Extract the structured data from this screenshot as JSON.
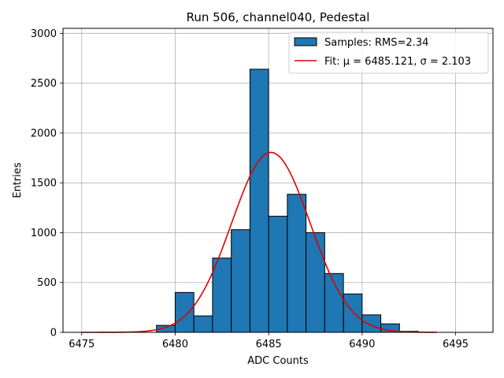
{
  "chart_data": {
    "type": "bar",
    "title": "Run 506, channel040, Pedestal",
    "xlabel": "ADC Counts",
    "ylabel": "Entries",
    "xlim": [
      6474.0,
      6497.0
    ],
    "ylim": [
      0,
      3050
    ],
    "xticks": [
      6475,
      6480,
      6485,
      6490,
      6495
    ],
    "xtick_labels": [
      "6475",
      "6480",
      "6485",
      "6490",
      "6495"
    ],
    "yticks": [
      0,
      500,
      1000,
      1500,
      2000,
      2500,
      3000
    ],
    "ytick_labels": [
      "0",
      "500",
      "1000",
      "1500",
      "2000",
      "2500",
      "3000"
    ],
    "grid": true,
    "legend_position": "top-right",
    "bin_width": 1,
    "bins": [
      {
        "left": 6479,
        "value": 70
      },
      {
        "left": 6480,
        "value": 400
      },
      {
        "left": 6481,
        "value": 165
      },
      {
        "left": 6482,
        "value": 745
      },
      {
        "left": 6483,
        "value": 1030
      },
      {
        "left": 6484,
        "value": 2640
      },
      {
        "left": 6485,
        "value": 1165
      },
      {
        "left": 6486,
        "value": 1385
      },
      {
        "left": 6487,
        "value": 1000
      },
      {
        "left": 6488,
        "value": 590
      },
      {
        "left": 6489,
        "value": 385
      },
      {
        "left": 6490,
        "value": 175
      },
      {
        "left": 6491,
        "value": 85
      },
      {
        "left": 6492,
        "value": 10
      }
    ],
    "series": [
      {
        "name": "Samples: RMS=2.34",
        "kind": "histogram",
        "color": "#1f77b4",
        "edge_color": "#000000"
      },
      {
        "name": "Fit: μ = 6485.121, σ = 2.103",
        "kind": "fit",
        "color": "#e00000",
        "mu": 6485.121,
        "sigma": 2.103,
        "amplitude": 1805,
        "x_range": [
          6475,
          6494
        ]
      }
    ]
  }
}
